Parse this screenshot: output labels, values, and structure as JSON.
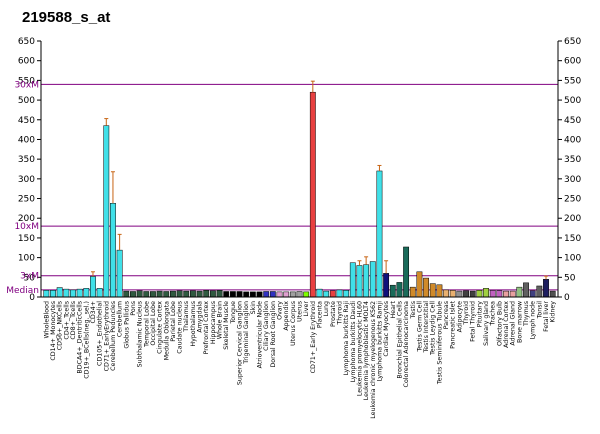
{
  "chart_data": {
    "type": "bar",
    "title": "219588_s_at",
    "ylim": [
      0,
      650
    ],
    "y_ticks": [
      0,
      50,
      100,
      150,
      200,
      250,
      300,
      350,
      400,
      450,
      500,
      550,
      600,
      650
    ],
    "grid": false,
    "legend": "none",
    "reference_lines": [
      {
        "label": "30xM",
        "value": 540
      },
      {
        "label": "10xM",
        "value": 180
      },
      {
        "label": "3xM",
        "value": 54
      },
      {
        "label": "Median",
        "value": 18
      }
    ],
    "colors": {
      "reference_line": "#800080",
      "error_bar": "#c86414",
      "bar_outline": "#000000"
    },
    "categories": [
      "WholeBlood",
      "CD14+_Monocytes",
      "CD56+_NKCells",
      "CD4+_Tcells",
      "CD8+_Tcells",
      "BDCA4+_DentriticCells",
      "CD19+_BCells(neg._sel.)",
      "CD34+",
      "CD105+_Endothelial",
      "CD71+_EarlyErythroid",
      "Cerebellum Peduncles",
      "Cerebellum",
      "Globus Pallidus",
      "Pons",
      "Subthalamic Nucleus",
      "Temporal Lobe",
      "Occipital Lobe",
      "Cingulate Cortex",
      "Medulla Oblongata",
      "Parietal Lobe",
      "Caudate nucleus",
      "Thalamus",
      "Hypothalamus",
      "Amygdala",
      "Prefrontal Cortex",
      "Hippocampus",
      "Whole Brain",
      "Skeletal Muscle",
      "Tongue",
      "Superior Cervical Ganglion",
      "Trigeminal Ganglion",
      "Skin",
      "Atrioventricular Node",
      "Ciliary Ganglion",
      "Dorsal Root Ganglion",
      "Ovary",
      "Appendix",
      "Uterus Corpus",
      "Uterus",
      "Liver",
      "CD71+_Early Erythroid",
      "Placenta",
      "Lung",
      "Prostate",
      "Thyroid",
      "Lymphoma burkitts Raji",
      "Lymphoma burkitts Daudi",
      "Leukemia promyelocytic HL60",
      "Leukemia lymphoblastic MOLT4",
      "Leukemia chronic myelogenous K562",
      "Lymphoma burkitts Ramji",
      "Cardiac Myocytes",
      "Heart",
      "Bronchial Epithelial Cells",
      "Colorectal Adenocarcinoma",
      "Testis",
      "Testis Germ Cell",
      "Testis Interstitial",
      "Testis Leydig Cell",
      "Testis Seminiferous Tubule",
      "Pancreas",
      "Pancreatic Islet",
      "Adipocyte",
      "Thyroid",
      "Fetal Thyroid",
      "Pituitary",
      "Salivary gland",
      "Trachea",
      "Olfactory Bulb",
      "Adrenal Cortex",
      "Adrenal Gland",
      "Bone marrow",
      "Thymus",
      "Lymph node",
      "Tonsil",
      "Fetal liver",
      "Kidney"
    ],
    "values": [
      17,
      17,
      24,
      20,
      18,
      20,
      22,
      52,
      22,
      435,
      238,
      119,
      15,
      14,
      16,
      14,
      14,
      15,
      14,
      15,
      16,
      15,
      16,
      15,
      17,
      16,
      17,
      14,
      14,
      14,
      13,
      13,
      13,
      14,
      14,
      13,
      13,
      13,
      14,
      13,
      520,
      20,
      15,
      16,
      18,
      17,
      87,
      80,
      82,
      90,
      320,
      60,
      30,
      37,
      127,
      25,
      64,
      48,
      34,
      31,
      18,
      17,
      15,
      16,
      15,
      17,
      22,
      17,
      16,
      15,
      15,
      25,
      36,
      16,
      28,
      45,
      15
    ],
    "errors": [
      0,
      0,
      0,
      0,
      0,
      0,
      0,
      12,
      0,
      18,
      80,
      40,
      0,
      0,
      0,
      0,
      0,
      0,
      0,
      0,
      0,
      0,
      0,
      0,
      0,
      0,
      0,
      0,
      0,
      0,
      0,
      0,
      0,
      0,
      0,
      0,
      0,
      0,
      0,
      0,
      28,
      0,
      0,
      0,
      0,
      0,
      0,
      12,
      20,
      0,
      14,
      32,
      0,
      0,
      0,
      0,
      0,
      0,
      0,
      0,
      0,
      0,
      0,
      0,
      0,
      0,
      0,
      0,
      0,
      0,
      0,
      0,
      0,
      0,
      0,
      8,
      0
    ],
    "bar_colors": [
      "#40e0e8",
      "#40e0e8",
      "#40e0e8",
      "#40e0e8",
      "#40e0e8",
      "#40e0e8",
      "#40e0e8",
      "#40e0e8",
      "#40e0e8",
      "#40e0e8",
      "#40e0e8",
      "#40e0e8",
      "#2f5a40",
      "#2f5a40",
      "#2f5a40",
      "#2f5a40",
      "#2f5a40",
      "#2f5a40",
      "#2f5a40",
      "#2f5a40",
      "#2f5a40",
      "#2f5a40",
      "#2f5a40",
      "#2f5a40",
      "#2f5a40",
      "#2f5a40",
      "#2f5a40",
      "#000000",
      "#000000",
      "#000000",
      "#000000",
      "#000000",
      "#000000",
      "#3030c0",
      "#3030c0",
      "#e0a0d0",
      "#e0a0d0",
      "#a0a0a0",
      "#a0a0a0",
      "#7fff00",
      "#e84040",
      "#40e0e8",
      "#40e0e8",
      "#e84040",
      "#40e0e8",
      "#40e0e8",
      "#40e0e8",
      "#40e0e8",
      "#40e0e8",
      "#40e0e8",
      "#40e0e8",
      "#10107a",
      "#1a6b5a",
      "#1a6b5a",
      "#1a6b5a",
      "#d08a2a",
      "#d08a2a",
      "#d08a2a",
      "#d08a2a",
      "#d08a2a",
      "#e8b070",
      "#e8b070",
      "#909090",
      "#404040",
      "#404040",
      "#a0d040",
      "#a0d040",
      "#c060c0",
      "#c060c0",
      "#e8a0a0",
      "#e8a0a0",
      "#90c080",
      "#606060",
      "#404080",
      "#606060",
      "#1e1e60",
      "#505050"
    ],
    "bar_colors_alt": [
      "#40e0e8",
      "#ffffff",
      "#40e0e8",
      "#40e0e8",
      "#40e0e8",
      "#40e0e8",
      "#40e0e8",
      "#40e0e8",
      "#40e0e8",
      "#40e0e8",
      "#40e0e8",
      "#40e0e8",
      "#2f5a40",
      "#2f5a40",
      "#2f5a40",
      "#2f5a40",
      "#2f5a40",
      "#2f5a40",
      "#2f5a40",
      "#2f5a40",
      "#2f5a40",
      "#2f5a40",
      "#2f5a40",
      "#2f5a40",
      "#2f5a40",
      "#2f5a40",
      "#2f5a40",
      "#000000",
      "#000000",
      "#000000",
      "#000000",
      "#000000",
      "#000000",
      "#3030c0",
      "#3030c0",
      "#e0a0d0",
      "#e0a0d0",
      "#a0a0a0",
      "#a0a0a0",
      "#7fff00",
      "#e84040",
      "#40e0e8",
      "#40e0e8",
      "#e84040",
      "#40e0e8",
      "#40e0e8",
      "#40e0e8",
      "#40e0e8",
      "#40e0e8",
      "#40e0e8",
      "#40e0e8",
      "#10107a",
      "#1a6b5a",
      "#1a6b5a",
      "#1a6b5a",
      "#d08a2a",
      "#d08a2a",
      "#d08a2a",
      "#d08a2a",
      "#d08a2a",
      "#e8b070",
      "#e8b070",
      "#909090",
      "#404040",
      "#404040",
      "#a0d040",
      "#a0d040",
      "#c060c0",
      "#c060c0",
      "#e8a0a0",
      "#e8a0a0",
      "#90c080",
      "#606060",
      "#404080",
      "#606060",
      "#1e1e60",
      "#505050"
    ]
  }
}
